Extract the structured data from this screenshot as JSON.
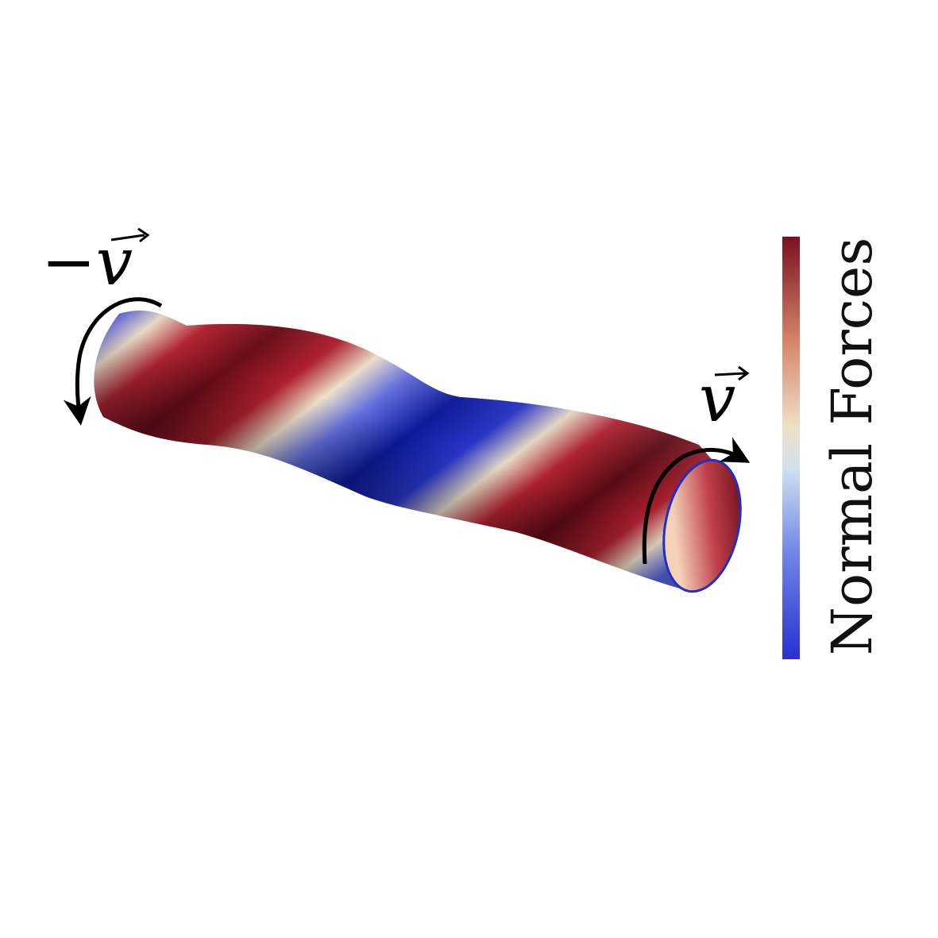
{
  "figure": {
    "left_label": "−v",
    "right_label": "v",
    "colorbar_label": "Normal Forces",
    "colors": {
      "high": "#7a1020",
      "mid": "#efe0c6",
      "low": "#2a2fd0",
      "arrow": "#000000"
    }
  }
}
